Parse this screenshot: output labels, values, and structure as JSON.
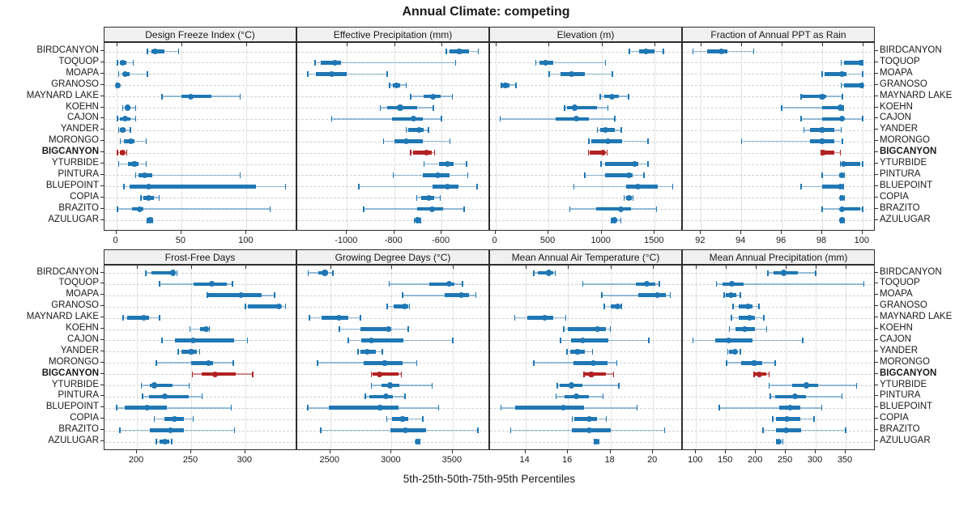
{
  "title": "Annual Climate: competing",
  "xlabel": "5th-25th-50th-75th-95th Percentiles",
  "percentiles": [
    5,
    25,
    50,
    75,
    95
  ],
  "sites": [
    "BIRDCANYON",
    "TOQUOP",
    "MOAPA",
    "GRANOSO",
    "MAYNARD LAKE",
    "KOEHN",
    "CAJON",
    "YANDER",
    "MORONGO",
    "BIGCANYON",
    "YTURBIDE",
    "PINTURA",
    "BLUEPOINT",
    "COPIA",
    "BRAZITO",
    "AZULUGAR"
  ],
  "highlight_site": "BIGCANYON",
  "colors": {
    "series": "#1f77b4",
    "series_light": "rgba(31,119,180,0.45)",
    "highlight": "#b22222",
    "highlight_light": "rgba(178,34,34,0.5)",
    "strip_bg": "#f0f0f0",
    "border": "#2e2e2e",
    "grid": "#cdcdcd",
    "text": "#1a1a1a"
  },
  "chart_data": [
    {
      "type": "percentile-range",
      "title": "Design Freeze Index (°C)",
      "grid_row": 0,
      "grid_col": 0,
      "xlim": [
        -9,
        139
      ],
      "ticks": [
        0,
        50,
        100
      ],
      "values": [
        [
          24,
          27,
          30,
          37,
          48
        ],
        [
          1,
          3,
          5,
          8,
          13
        ],
        [
          2,
          5,
          7,
          10,
          24
        ],
        [
          0,
          0.5,
          1,
          1.5,
          2
        ],
        [
          35,
          50,
          57,
          73,
          95
        ],
        [
          5,
          8,
          9,
          11,
          15
        ],
        [
          1,
          3,
          7,
          11,
          15
        ],
        [
          2,
          3,
          5,
          7,
          11
        ],
        [
          3,
          6,
          11,
          14,
          23
        ],
        [
          1,
          3,
          5,
          6,
          8
        ],
        [
          2,
          9,
          14,
          17,
          23
        ],
        [
          15,
          17,
          22,
          28,
          95
        ],
        [
          6,
          10,
          25,
          107,
          130
        ],
        [
          19,
          21,
          25,
          29,
          33
        ],
        [
          1,
          12,
          18,
          21,
          118
        ],
        [
          24,
          25,
          26,
          27,
          28
        ]
      ]
    },
    {
      "type": "percentile-range",
      "title": "Effective Precipitation (mm)",
      "grid_row": 0,
      "grid_col": 1,
      "xlim": [
        -1210,
        -395
      ],
      "ticks": [
        -1000,
        -800,
        -600
      ],
      "values": [
        [
          -580,
          -565,
          -525,
          -485,
          -445
        ],
        [
          -1135,
          -1110,
          -1050,
          -1025,
          -540
        ],
        [
          -1165,
          -1130,
          -1065,
          -1000,
          -830
        ],
        [
          -820,
          -805,
          -790,
          -775,
          -750
        ],
        [
          -730,
          -675,
          -635,
          -605,
          -555
        ],
        [
          -860,
          -830,
          -775,
          -705,
          -635
        ],
        [
          -1065,
          -810,
          -720,
          -680,
          -600
        ],
        [
          -750,
          -740,
          -695,
          -675,
          -655
        ],
        [
          -845,
          -800,
          -750,
          -680,
          -565
        ],
        [
          -730,
          -720,
          -665,
          -640,
          -630
        ],
        [
          -675,
          -610,
          -575,
          -550,
          -495
        ],
        [
          -805,
          -680,
          -615,
          -565,
          -490
        ],
        [
          -950,
          -640,
          -575,
          -530,
          -450
        ],
        [
          -705,
          -685,
          -655,
          -630,
          -605
        ],
        [
          -930,
          -705,
          -640,
          -595,
          -505
        ],
        [
          -715,
          -708,
          -703,
          -698,
          -690
        ]
      ]
    },
    {
      "type": "percentile-range",
      "title": "Elevation (m)",
      "grid_row": 0,
      "grid_col": 2,
      "xlim": [
        -50,
        1765
      ],
      "ticks": [
        0,
        500,
        1000,
        1500
      ],
      "values": [
        [
          1260,
          1350,
          1420,
          1500,
          1580
        ],
        [
          380,
          415,
          475,
          545,
          1035
        ],
        [
          505,
          610,
          715,
          840,
          1100
        ],
        [
          55,
          65,
          95,
          130,
          195
        ],
        [
          985,
          1025,
          1095,
          1165,
          1255
        ],
        [
          650,
          675,
          745,
          960,
          1060
        ],
        [
          45,
          570,
          760,
          880,
          1125
        ],
        [
          960,
          985,
          1035,
          1125,
          1185
        ],
        [
          880,
          905,
          1060,
          1190,
          1435
        ],
        [
          875,
          890,
          1015,
          1035,
          1050
        ],
        [
          995,
          1035,
          1310,
          1345,
          1435
        ],
        [
          840,
          1035,
          1255,
          1295,
          1400
        ],
        [
          740,
          1230,
          1340,
          1530,
          1670
        ],
        [
          1210,
          1230,
          1255,
          1285,
          1295
        ],
        [
          700,
          945,
          1185,
          1280,
          1515
        ],
        [
          1095,
          1105,
          1120,
          1150,
          1180
        ]
      ]
    },
    {
      "type": "percentile-range",
      "title": "Fraction of Annual PPT as Rain",
      "grid_row": 0,
      "grid_col": 3,
      "xlim": [
        91.1,
        100.65
      ],
      "ticks": [
        92,
        94,
        96,
        98,
        100
      ],
      "values": [
        [
          91.6,
          92.3,
          93.0,
          93.3,
          94.6
        ],
        [
          98.95,
          99.1,
          99.9,
          100,
          100
        ],
        [
          98.0,
          98.1,
          99.0,
          99.2,
          100
        ],
        [
          98.95,
          99.1,
          99.95,
          100,
          100
        ],
        [
          96.95,
          97.0,
          98.0,
          98.2,
          99.0
        ],
        [
          96.0,
          98.0,
          98.9,
          99.0,
          99.05
        ],
        [
          96.95,
          98.0,
          99.0,
          99.1,
          100
        ],
        [
          97.1,
          97.4,
          98.0,
          98.6,
          98.95
        ],
        [
          94.0,
          97.4,
          98.0,
          98.6,
          99.0
        ],
        [
          97.95,
          98.0,
          98.05,
          98.6,
          98.9
        ],
        [
          98.9,
          99.0,
          99.05,
          99.9,
          100
        ],
        [
          98.0,
          98.85,
          99.0,
          99.0,
          99.1
        ],
        [
          96.95,
          98.0,
          98.9,
          99.0,
          99.05
        ],
        [
          98.9,
          98.95,
          99.0,
          99.05,
          99.1
        ],
        [
          98.0,
          98.9,
          99.0,
          99.9,
          100
        ],
        [
          98.9,
          98.95,
          99.0,
          99.05,
          99.1
        ]
      ]
    },
    {
      "type": "percentile-range",
      "title": "Frost-Free Days",
      "grid_row": 1,
      "grid_col": 0,
      "xlim": [
        170,
        348
      ],
      "ticks": [
        200,
        250,
        300
      ],
      "values": [
        [
          208,
          213,
          233,
          235,
          237
        ],
        [
          221,
          252,
          269,
          283,
          288
        ],
        [
          265,
          266,
          296,
          315,
          327
        ],
        [
          300,
          302,
          331,
          333,
          337
        ],
        [
          187,
          191,
          206,
          211,
          221
        ],
        [
          249,
          258,
          264,
          266,
          267
        ],
        [
          223,
          235,
          252,
          290,
          302
        ],
        [
          238,
          241,
          250,
          255,
          258
        ],
        [
          218,
          250,
          266,
          270,
          289
        ],
        [
          251,
          260,
          272,
          291,
          307
        ],
        [
          204,
          212,
          216,
          233,
          248
        ],
        [
          205,
          211,
          226,
          248,
          260
        ],
        [
          181,
          189,
          209,
          228,
          287
        ],
        [
          216,
          225,
          235,
          243,
          252
        ],
        [
          184,
          212,
          231,
          243,
          290
        ],
        [
          218,
          221,
          226,
          230,
          232
        ]
      ]
    },
    {
      "type": "percentile-range",
      "title": "Growing Degree Days (°C)",
      "grid_row": 1,
      "grid_col": 1,
      "xlim": [
        2230,
        3805
      ],
      "ticks": [
        2500,
        3000,
        3500
      ],
      "values": [
        [
          2320,
          2400,
          2455,
          2485,
          2520
        ],
        [
          2980,
          3310,
          3470,
          3515,
          3580
        ],
        [
          3090,
          3435,
          3570,
          3635,
          3690
        ],
        [
          2965,
          3020,
          3105,
          3135,
          3145
        ],
        [
          2330,
          2430,
          2570,
          2645,
          2745
        ],
        [
          2575,
          2745,
          2975,
          3000,
          3135
        ],
        [
          2645,
          2755,
          2835,
          3100,
          3500
        ],
        [
          2725,
          2745,
          2800,
          2875,
          2925
        ],
        [
          2395,
          2775,
          2945,
          3090,
          3205
        ],
        [
          2835,
          2845,
          2900,
          3055,
          3080
        ],
        [
          2835,
          2920,
          2990,
          3065,
          3330
        ],
        [
          2785,
          2820,
          2955,
          3010,
          3110
        ],
        [
          2315,
          2485,
          2905,
          3055,
          3385
        ],
        [
          2960,
          3005,
          3090,
          3135,
          3255
        ],
        [
          2420,
          2990,
          3115,
          3280,
          3705
        ],
        [
          3200,
          3205,
          3212,
          3220,
          3230
        ]
      ]
    },
    {
      "type": "percentile-range",
      "title": "Mean Annual Air Temperature (°C)",
      "grid_row": 1,
      "grid_col": 2,
      "xlim": [
        12.34,
        21.4
      ],
      "ticks": [
        14,
        16,
        18,
        20
      ],
      "values": [
        [
          14.4,
          14.6,
          15.1,
          15.3,
          15.4
        ],
        [
          16.7,
          19.2,
          19.7,
          20.1,
          20.3
        ],
        [
          17.6,
          19.3,
          20.2,
          20.6,
          20.8
        ],
        [
          17.7,
          18.0,
          18.35,
          18.45,
          18.5
        ],
        [
          13.5,
          14.1,
          14.9,
          15.3,
          15.9
        ],
        [
          15.8,
          16.0,
          17.4,
          17.8,
          18.0
        ],
        [
          15.65,
          16.15,
          16.7,
          17.9,
          19.8
        ],
        [
          15.95,
          16.1,
          16.45,
          16.8,
          17.15
        ],
        [
          14.4,
          16.25,
          17.2,
          17.85,
          18.3
        ],
        [
          16.75,
          16.8,
          17.1,
          17.8,
          18.15
        ],
        [
          15.5,
          15.6,
          16.15,
          16.7,
          18.4
        ],
        [
          15.45,
          15.85,
          16.4,
          17.0,
          17.65
        ],
        [
          12.85,
          13.5,
          15.8,
          16.75,
          19.25
        ],
        [
          16.2,
          16.3,
          17.0,
          17.35,
          17.8
        ],
        [
          13.3,
          16.2,
          17.0,
          18.0,
          20.55
        ],
        [
          17.25,
          17.3,
          17.35,
          17.4,
          17.45
        ]
      ]
    },
    {
      "type": "percentile-range",
      "title": "Mean Annual Precipitation (mm)",
      "grid_row": 1,
      "grid_col": 3,
      "xlim": [
        78,
        400
      ],
      "ticks": [
        100,
        150,
        200,
        250,
        300,
        350
      ],
      "values": [
        [
          220,
          230,
          247,
          270,
          300
        ],
        [
          134,
          144,
          160,
          179,
          380
        ],
        [
          147,
          150,
          159,
          167,
          174
        ],
        [
          162,
          171,
          187,
          195,
          205
        ],
        [
          159,
          171,
          190,
          198,
          213
        ],
        [
          156,
          166,
          181,
          198,
          218
        ],
        [
          95,
          132,
          155,
          195,
          278
        ],
        [
          153,
          155,
          165,
          169,
          174
        ],
        [
          151,
          175,
          197,
          210,
          232
        ],
        [
          197,
          198,
          206,
          218,
          222
        ],
        [
          222,
          261,
          284,
          304,
          368
        ],
        [
          224,
          232,
          265,
          284,
          344
        ],
        [
          139,
          239,
          257,
          274,
          310
        ],
        [
          228,
          234,
          252,
          274,
          297
        ],
        [
          212,
          234,
          250,
          275,
          350
        ],
        [
          234,
          236,
          238,
          242,
          245
        ]
      ]
    }
  ]
}
